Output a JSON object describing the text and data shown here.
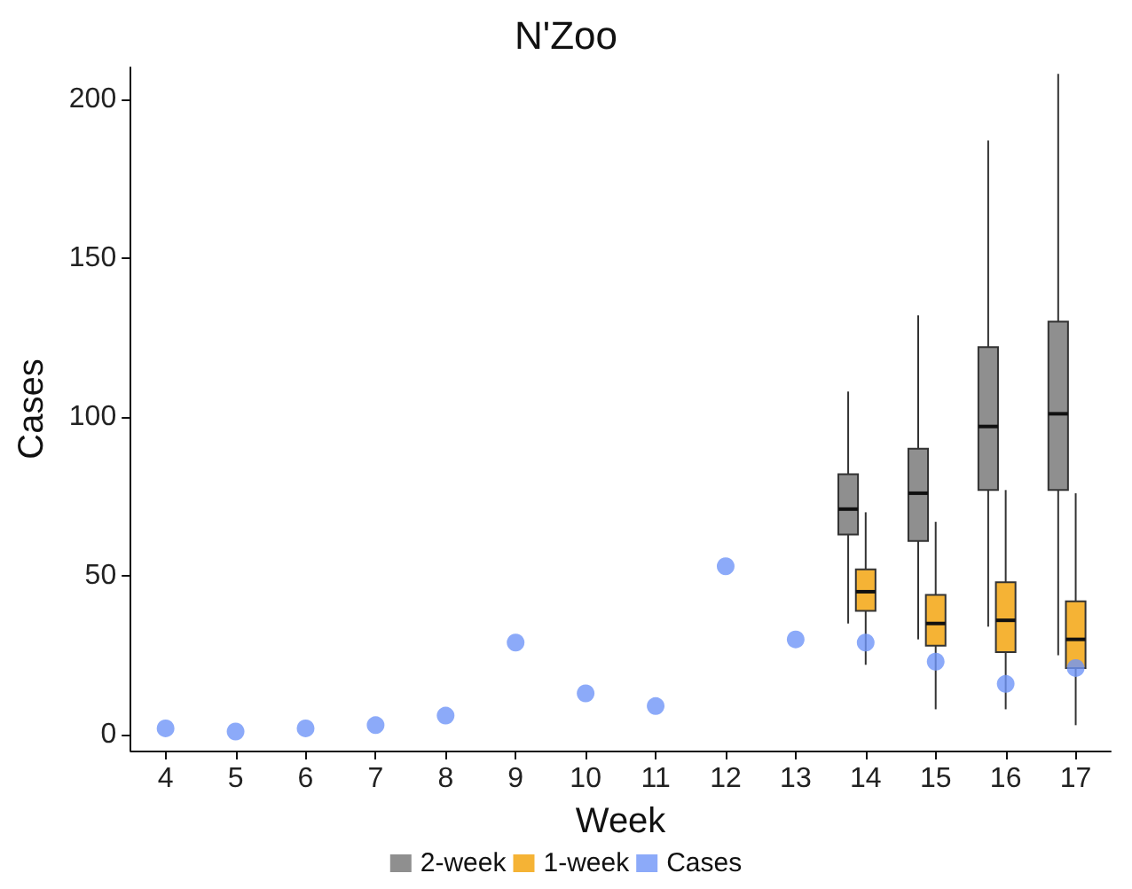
{
  "chart_data": {
    "type": "box",
    "title": "N'Zoo",
    "xlabel": "Week",
    "ylabel": "Cases",
    "categories": [
      "4",
      "5",
      "6",
      "7",
      "8",
      "9",
      "10",
      "11",
      "12",
      "13",
      "14",
      "15",
      "16",
      "17"
    ],
    "ylim": [
      -5,
      210
    ],
    "yticks": [
      0,
      50,
      100,
      150,
      200
    ],
    "grid": false,
    "legend": "bottom",
    "series": [
      {
        "name": "2-week",
        "type": "box",
        "color": "#8f8f8f",
        "boxes": [
          null,
          null,
          null,
          null,
          null,
          null,
          null,
          null,
          null,
          null,
          {
            "low": 35,
            "q1": 63,
            "median": 71,
            "q3": 82,
            "high": 108
          },
          {
            "low": 30,
            "q1": 61,
            "median": 76,
            "q3": 90,
            "high": 132
          },
          {
            "low": 34,
            "q1": 77,
            "median": 97,
            "q3": 122,
            "high": 187
          },
          {
            "low": 25,
            "q1": 77,
            "median": 101,
            "q3": 130,
            "high": 208
          }
        ]
      },
      {
        "name": "1-week",
        "type": "box",
        "color": "#f5b335",
        "boxes": [
          null,
          null,
          null,
          null,
          null,
          null,
          null,
          null,
          null,
          null,
          {
            "low": 22,
            "q1": 39,
            "median": 45,
            "q3": 52,
            "high": 70
          },
          {
            "low": 8,
            "q1": 28,
            "median": 35,
            "q3": 44,
            "high": 67
          },
          {
            "low": 8,
            "q1": 26,
            "median": 36,
            "q3": 48,
            "high": 77
          },
          {
            "low": 3,
            "q1": 21,
            "median": 30,
            "q3": 42,
            "high": 76
          }
        ]
      },
      {
        "name": "Cases",
        "type": "scatter",
        "color": "#6f95f7",
        "values": [
          2,
          1,
          2,
          3,
          6,
          29,
          13,
          9,
          53,
          30,
          29,
          23,
          16,
          21
        ]
      }
    ]
  }
}
